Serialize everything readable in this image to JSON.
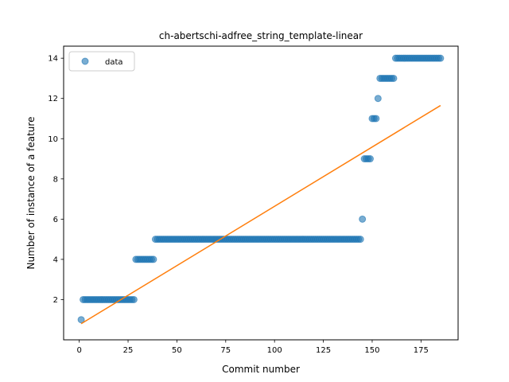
{
  "chart_data": {
    "type": "scatter",
    "title": "ch-abertschi-adfree_string_template-linear",
    "xlabel": "Commit number",
    "ylabel": "Number of instance of a feature",
    "xlim": [
      -8,
      194
    ],
    "ylim": [
      0,
      14.6
    ],
    "xticks": [
      0,
      25,
      50,
      75,
      100,
      125,
      150,
      175
    ],
    "yticks": [
      2,
      4,
      6,
      8,
      10,
      12,
      14
    ],
    "legend": {
      "label": "data",
      "position": "top-left"
    },
    "colors": {
      "data": "#1f77b4",
      "fit": "#ff7f0e"
    },
    "series": [
      {
        "name": "data",
        "kind": "scatter",
        "runs": [
          {
            "from": 1,
            "to": 1,
            "y": 1
          },
          {
            "from": 2,
            "to": 28,
            "y": 2
          },
          {
            "from": 29,
            "to": 38,
            "y": 4
          },
          {
            "from": 39,
            "to": 144,
            "y": 5
          },
          {
            "from": 145,
            "to": 145,
            "y": 6
          },
          {
            "from": 146,
            "to": 149,
            "y": 9
          },
          {
            "from": 150,
            "to": 152,
            "y": 11
          },
          {
            "from": 153,
            "to": 153,
            "y": 12
          },
          {
            "from": 154,
            "to": 161,
            "y": 13
          },
          {
            "from": 162,
            "to": 185,
            "y": 14
          }
        ]
      },
      {
        "name": "fit",
        "kind": "line",
        "x": [
          1,
          185
        ],
        "y": [
          0.8,
          11.65
        ]
      }
    ]
  }
}
